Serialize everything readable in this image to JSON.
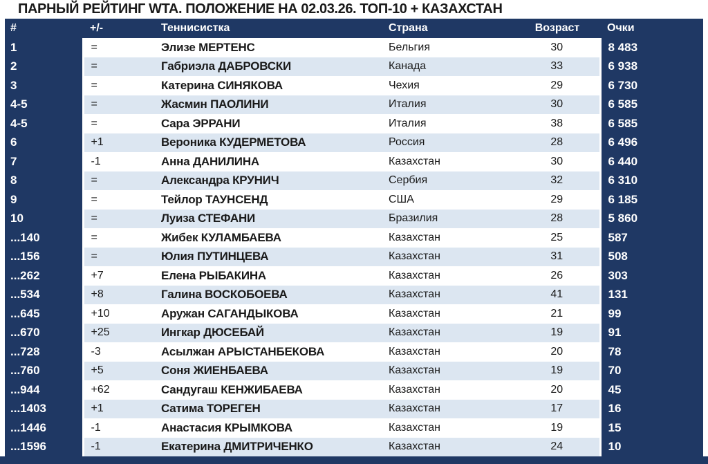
{
  "colors": {
    "navy": "#1f3864",
    "stripe": "#dce6f1",
    "row_bg": "#ffffff",
    "title_color": "#1a1a1a",
    "body_text": "#1a1a1a",
    "light_text": "#ffffff"
  },
  "chart_data": {
    "type": "table",
    "title": "ПАРНЫЙ РЕЙТИНГ WTA. ПОЛОЖЕНИЕ НА 02.03.26. ТОП-10 + КАЗАХСТАН",
    "columns": [
      "#",
      "+/-",
      "Теннисистка",
      "Страна",
      "Возраст",
      "Очки"
    ],
    "rows": [
      [
        "1",
        "=",
        "Элизе МЕРТЕНС",
        "Бельгия",
        "30",
        "8 483"
      ],
      [
        "2",
        "=",
        "Габриэла ДАБРОВСКИ",
        "Канада",
        "33",
        "6 938"
      ],
      [
        "3",
        "=",
        "Катерина СИНЯКОВА",
        "Чехия",
        "29",
        "6 730"
      ],
      [
        "4-5",
        "=",
        "Жасмин ПАОЛИНИ",
        "Италия",
        "30",
        "6 585"
      ],
      [
        "4-5",
        "=",
        "Сара ЭРРАНИ",
        "Италия",
        "38",
        "6 585"
      ],
      [
        "6",
        "+1",
        "Вероника КУДЕРМЕТОВА",
        "Россия",
        "28",
        "6 496"
      ],
      [
        "7",
        "-1",
        "Анна ДАНИЛИНА",
        "Казахстан",
        "30",
        "6 440"
      ],
      [
        "8",
        "=",
        "Александра КРУНИЧ",
        "Сербия",
        "32",
        "6 310"
      ],
      [
        "9",
        "=",
        "Тейлор ТАУНСЕНД",
        "США",
        "29",
        "6 185"
      ],
      [
        "10",
        "=",
        "Луиза СТЕФАНИ",
        "Бразилия",
        "28",
        "5 860"
      ],
      [
        "...140",
        "=",
        "Жибек КУЛАМБАЕВА",
        "Казахстан",
        "25",
        "587"
      ],
      [
        "...156",
        "=",
        "Юлия ПУТИНЦЕВА",
        "Казахстан",
        "31",
        "508"
      ],
      [
        "...262",
        "+7",
        "Елена РЫБАКИНА",
        "Казахстан",
        "26",
        "303"
      ],
      [
        "...534",
        "+8",
        "Галина ВОСКОБОЕВА",
        "Казахстан",
        "41",
        "131"
      ],
      [
        "...645",
        "+10",
        "Аружан САГАНДЫКОВА",
        "Казахстан",
        "21",
        "99"
      ],
      [
        "...670",
        "+25",
        "Ингкар ДЮСЕБАЙ",
        "Казахстан",
        "19",
        "91"
      ],
      [
        "...728",
        "-3",
        "Асылжан АРЫСТАНБЕКОВА",
        "Казахстан",
        "20",
        "78"
      ],
      [
        "...760",
        "+5",
        "Соня ЖИЕНБАЕВА",
        "Казахстан",
        "19",
        "70"
      ],
      [
        "...944",
        "+62",
        "Сандугаш КЕНЖИБАЕВА",
        "Казахстан",
        "20",
        "45"
      ],
      [
        "...1403",
        "+1",
        "Сатима ТОРЕГЕН",
        "Казахстан",
        "17",
        "16"
      ],
      [
        "...1446",
        "-1",
        "Анастасия КРЫМКОВА",
        "Казахстан",
        "19",
        "15"
      ],
      [
        "...1596",
        "-1",
        "Екатерина ДМИТРИЧЕНКО",
        "Казахстан",
        "24",
        "10"
      ]
    ]
  }
}
